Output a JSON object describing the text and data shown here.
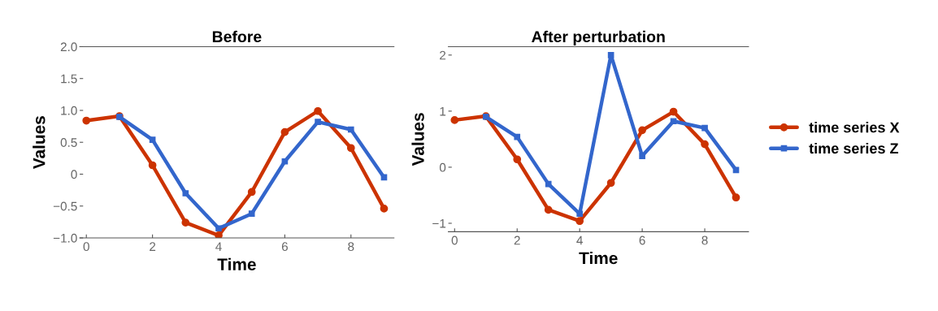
{
  "chart_data": [
    {
      "type": "line",
      "title": "Before",
      "xlabel": "Time",
      "ylabel": "Values",
      "xlim": [
        -0.2,
        9.3
      ],
      "ylim": [
        -1.0,
        2.0
      ],
      "xticks": [
        0,
        2,
        4,
        6,
        8
      ],
      "yticks": [
        {
          "value": -1.0,
          "label": "−1.0"
        },
        {
          "value": -0.5,
          "label": "−0.5"
        },
        0,
        0.5,
        {
          "value": 1.0,
          "label": "1.0"
        },
        1.5,
        {
          "value": 2.0,
          "label": "2.0"
        }
      ],
      "grid": false,
      "legend": false,
      "series": [
        {
          "color": "#cc3300",
          "marker": "circle",
          "x": [
            0,
            1,
            2,
            3,
            4,
            5,
            6,
            7,
            8,
            9
          ],
          "values": [
            0.84,
            0.91,
            0.14,
            -0.76,
            -0.96,
            -0.28,
            0.66,
            0.99,
            0.41,
            -0.54
          ]
        },
        {
          "color": "#3366cc",
          "marker": "square",
          "x": [
            1,
            2,
            3,
            4,
            5,
            6,
            7,
            8,
            9
          ],
          "values": [
            0.9,
            0.54,
            -0.3,
            -0.85,
            -0.62,
            0.2,
            0.82,
            0.7,
            -0.05
          ]
        }
      ]
    },
    {
      "type": "line",
      "title": "After perturbation",
      "xlabel": "Time",
      "ylabel": "Values",
      "xlim": [
        -0.2,
        9.4
      ],
      "ylim": [
        -1.15,
        2.15
      ],
      "xticks": [
        0,
        2,
        4,
        6,
        8
      ],
      "yticks": [
        {
          "value": -1,
          "label": "−1"
        },
        0,
        1,
        2
      ],
      "grid": false,
      "legend": "right",
      "series": [
        {
          "name": "time series X",
          "color": "#cc3300",
          "marker": "circle",
          "x": [
            0,
            1,
            2,
            3,
            4,
            5,
            6,
            7,
            8,
            9
          ],
          "values": [
            0.84,
            0.91,
            0.14,
            -0.76,
            -0.96,
            -0.28,
            0.66,
            0.99,
            0.41,
            -0.54
          ]
        },
        {
          "name": "time series Z",
          "color": "#3366cc",
          "marker": "square",
          "x": [
            1,
            2,
            3,
            4,
            5,
            6,
            7,
            8,
            9
          ],
          "values": [
            0.9,
            0.54,
            -0.3,
            -0.83,
            2.0,
            0.2,
            0.82,
            0.7,
            -0.05
          ]
        }
      ]
    }
  ]
}
